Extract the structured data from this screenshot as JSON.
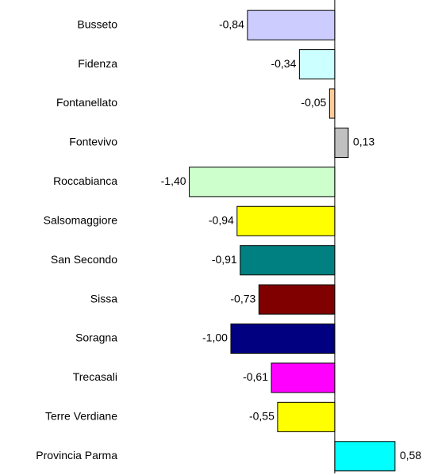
{
  "chart_data": {
    "type": "barh",
    "categories": [
      "Busseto",
      "Fidenza",
      "Fontanellato",
      "Fontevivo",
      "Roccabianca",
      "Salsomaggiore",
      "San Secondo",
      "Sissa",
      "Soragna",
      "Trecasali",
      "Terre Verdiane",
      "Provincia Parma"
    ],
    "values": [
      -0.84,
      -0.34,
      -0.05,
      0.13,
      -1.4,
      -0.94,
      -0.91,
      -0.73,
      -1.0,
      -0.61,
      -0.55,
      0.58
    ],
    "value_labels": [
      "-0,84",
      "-0,34",
      "-0,05",
      "0,13",
      "-1,40",
      "-0,94",
      "-0,91",
      "-0,73",
      "-1,00",
      "-0,61",
      "-0,55",
      "0,58"
    ],
    "colors": [
      "#ccccff",
      "#ccffff",
      "#ffcc99",
      "#c0c0c0",
      "#ccffcc",
      "#ffff00",
      "#008080",
      "#800000",
      "#000080",
      "#ff00ff",
      "#ffff00",
      "#00ffff"
    ],
    "xlim": [
      -2,
      0.94
    ]
  }
}
